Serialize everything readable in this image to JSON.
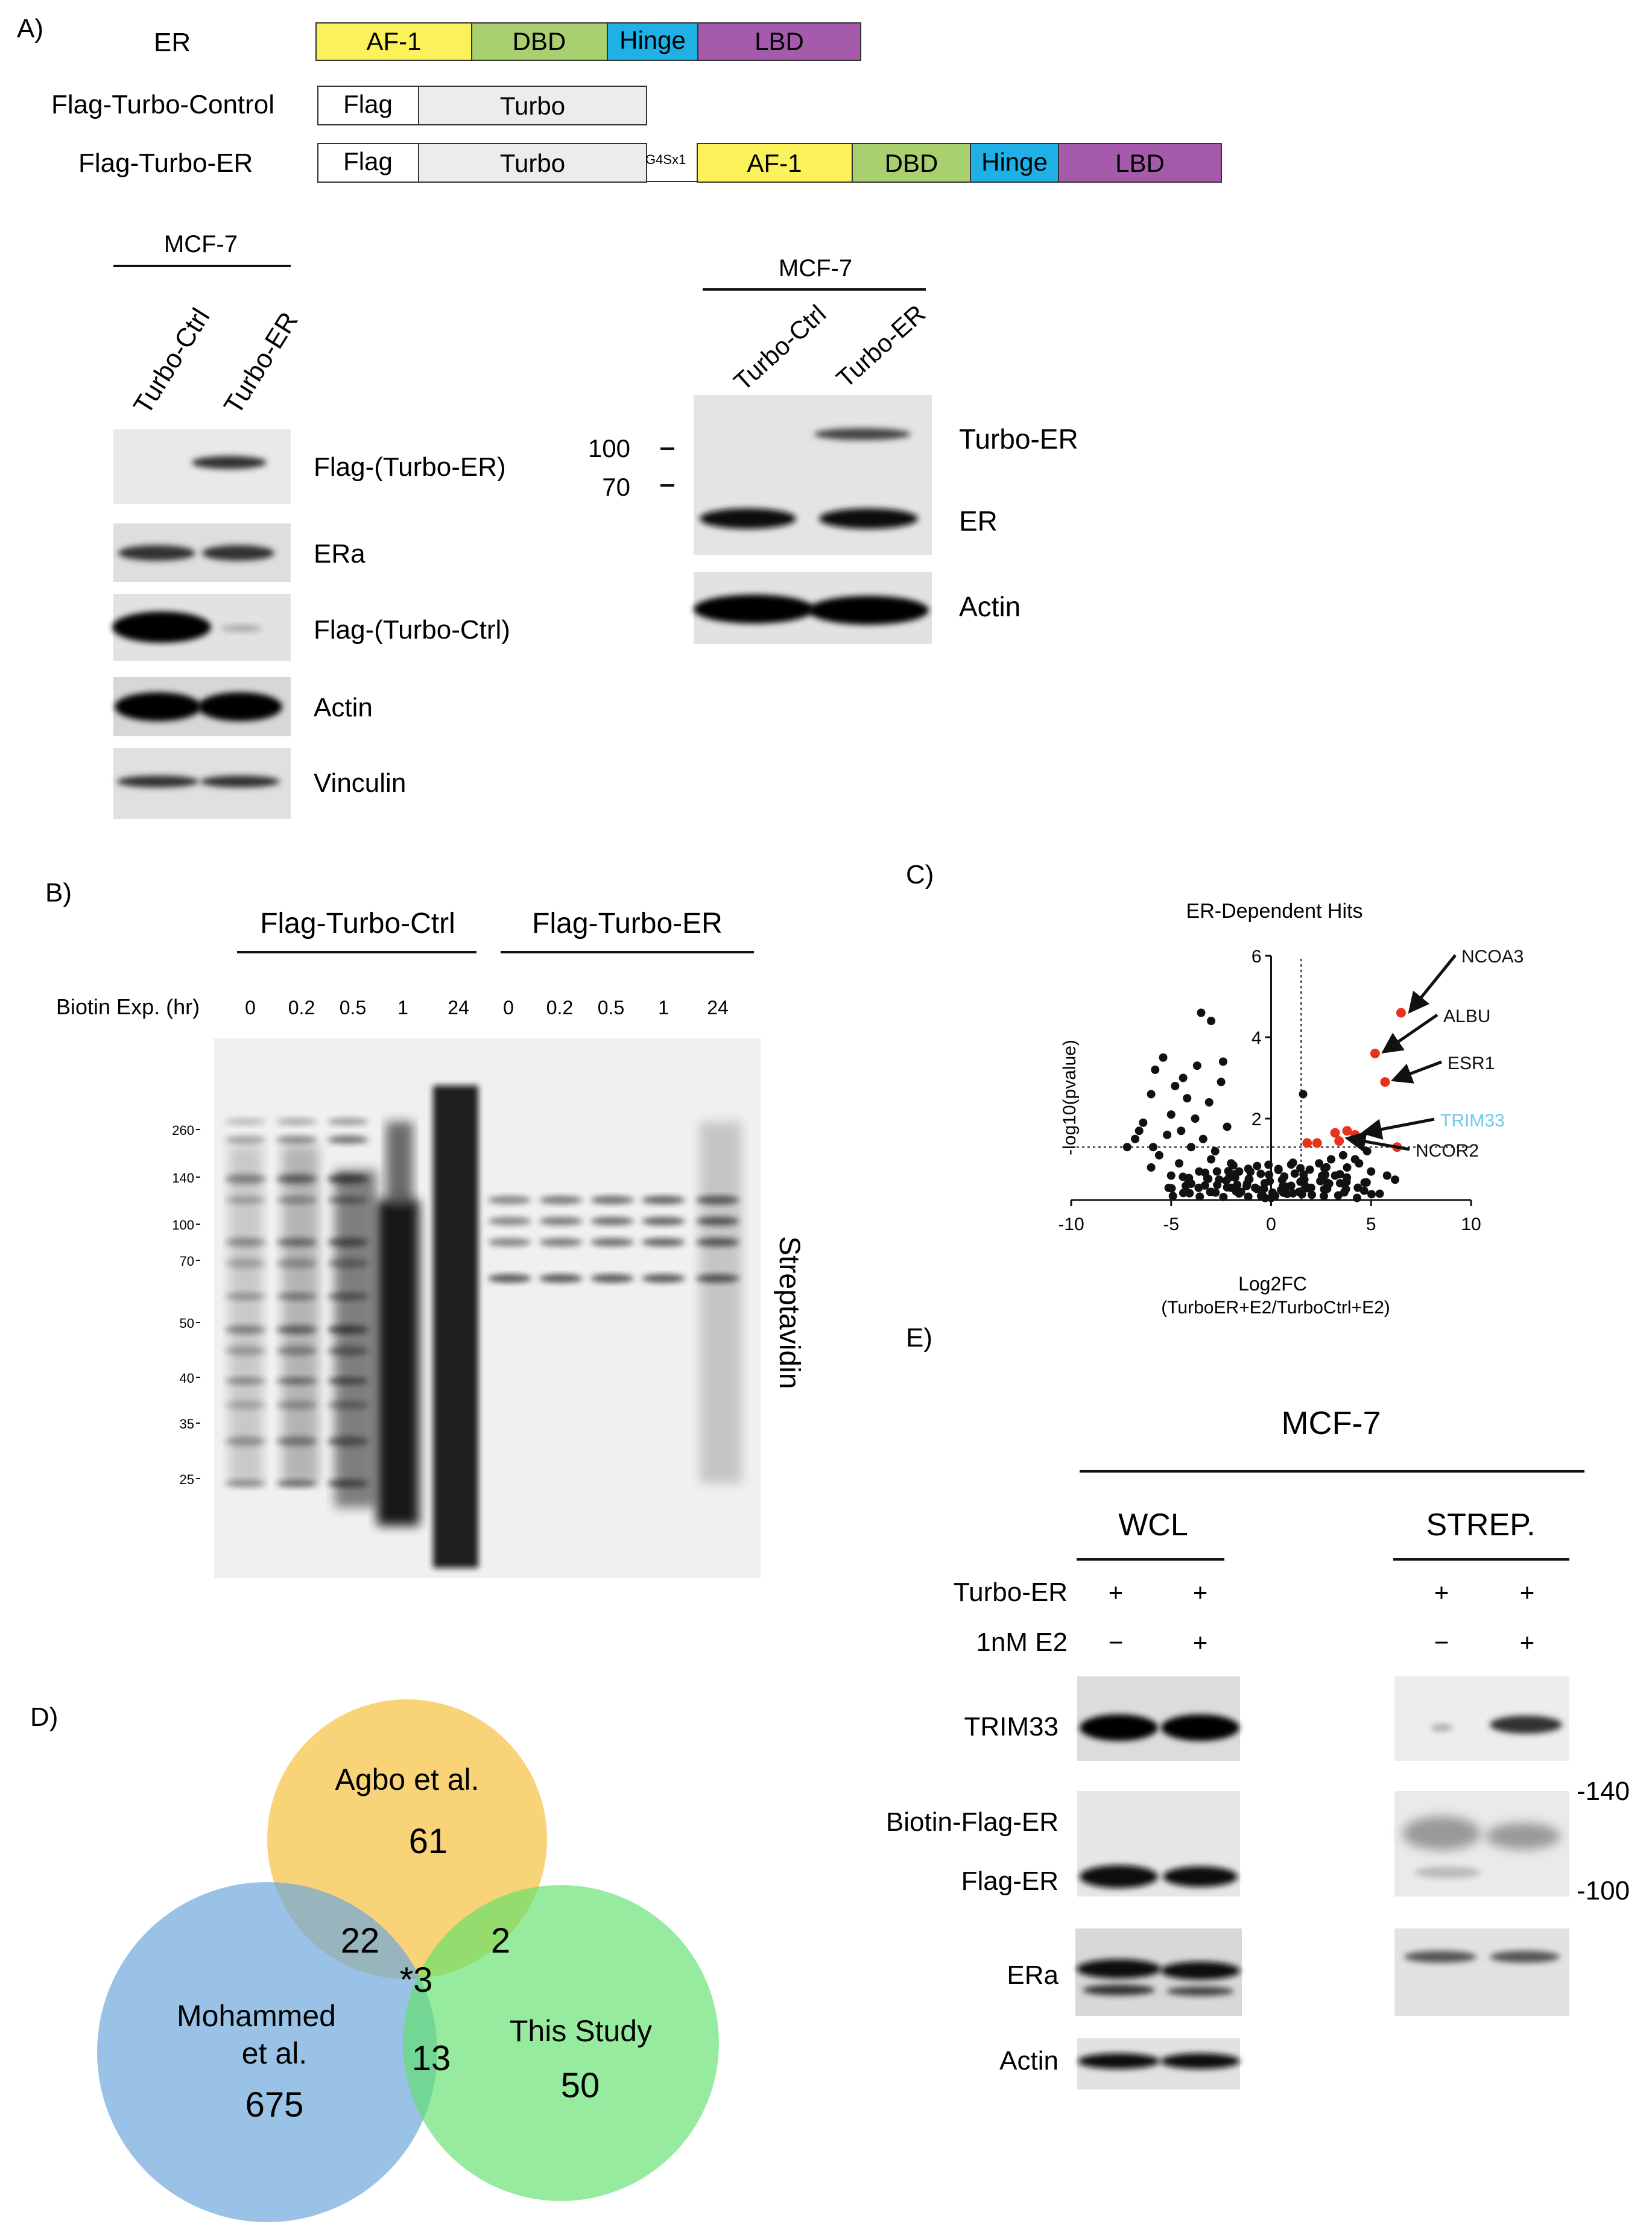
{
  "panelA": {
    "letter": "A)",
    "constructs": [
      {
        "name": "ER",
        "segments": [
          {
            "label": "AF-1",
            "color": "#fbf15b"
          },
          {
            "label": "DBD",
            "color": "#a8d06f"
          },
          {
            "label": "Hinge",
            "color": "#1fb1e6"
          },
          {
            "label": "LBD",
            "color": "#a65aac"
          }
        ]
      },
      {
        "name": "Flag-Turbo-Control",
        "segments": [
          {
            "label": "Flag",
            "color": "#ffffff"
          },
          {
            "label": "Turbo",
            "color": "#ececec"
          }
        ]
      },
      {
        "name": "Flag-Turbo-ER",
        "linker": "G4Sx1",
        "segments": [
          {
            "label": "Flag",
            "color": "#ffffff"
          },
          {
            "label": "Turbo",
            "color": "#ececec"
          },
          {
            "label": "AF-1",
            "color": "#fbf15b"
          },
          {
            "label": "DBD",
            "color": "#a8d06f"
          },
          {
            "label": "Hinge",
            "color": "#1fb1e6"
          },
          {
            "label": "LBD",
            "color": "#a65aac"
          }
        ]
      }
    ],
    "blot1": {
      "cell": "MCF-7",
      "lanes": [
        "Turbo-Ctrl",
        "Turbo-ER"
      ],
      "rows": [
        "Flag-(Turbo-ER)",
        "ERa",
        "Flag-(Turbo-Ctrl)",
        "Actin",
        "Vinculin"
      ]
    },
    "blot2": {
      "cell": "MCF-7",
      "lanes": [
        "Turbo-Ctrl",
        "Turbo-ER"
      ],
      "markers": [
        "100",
        "70"
      ],
      "rows": [
        "Turbo-ER",
        "ER",
        "Actin"
      ]
    }
  },
  "panelB": {
    "letter": "B)",
    "groups": [
      "Flag-Turbo-Ctrl",
      "Flag-Turbo-ER"
    ],
    "time_label": "Biotin Exp. (hr)",
    "times": [
      "0",
      "0.2",
      "0.5",
      "1",
      "24",
      "0",
      "0.2",
      "0.5",
      "1",
      "24"
    ],
    "markers": [
      "260",
      "140",
      "100",
      "70",
      "50",
      "40",
      "35",
      "25"
    ],
    "side_label": "Streptavidin"
  },
  "panelC": {
    "letter": "C)",
    "chart_data": {
      "type": "scatter",
      "title": "ER-Dependent Hits",
      "xlabel": "Log2FC",
      "xlabel2": "(TurboER+E2/TurboCtrl+E2)",
      "ylabel": "-log10(pvalue)",
      "xlim": [
        -10,
        10
      ],
      "ylim": [
        0,
        6
      ],
      "xticks": [
        "-10",
        "-5",
        "0",
        "5",
        "10"
      ],
      "yticks": [
        "2",
        "4",
        "6"
      ],
      "threshold_x": 1.5,
      "threshold_y": 1.3,
      "highlight_color": "#e8321e",
      "annotations": [
        {
          "label": "NCOA3",
          "x": 6.5,
          "y": 4.6,
          "color": "#111111"
        },
        {
          "label": "ALBU",
          "x": 5.2,
          "y": 3.6,
          "color": "#111111"
        },
        {
          "label": "ESR1",
          "x": 5.7,
          "y": 2.9,
          "color": "#111111"
        },
        {
          "label": "TRIM33",
          "x": 4.2,
          "y": 1.6,
          "color": "#6fc8ee"
        },
        {
          "label": "NCOR2",
          "x": 3.4,
          "y": 1.45,
          "color": "#111111"
        }
      ],
      "highlighted": [
        [
          6.5,
          4.6
        ],
        [
          5.2,
          3.6
        ],
        [
          5.7,
          2.9
        ],
        [
          4.2,
          1.6
        ],
        [
          3.4,
          1.45
        ],
        [
          3.8,
          1.7
        ],
        [
          3.2,
          1.65
        ],
        [
          2.3,
          1.4
        ],
        [
          1.8,
          1.4
        ],
        [
          6.3,
          1.3
        ]
      ],
      "background": [
        [
          -3.5,
          4.6
        ],
        [
          -3.0,
          4.4
        ],
        [
          -5.4,
          3.5
        ],
        [
          -5.8,
          3.2
        ],
        [
          -4.8,
          2.8
        ],
        [
          -2.5,
          2.9
        ],
        [
          -6.0,
          2.6
        ],
        [
          -4.2,
          2.5
        ],
        [
          -3.1,
          2.4
        ],
        [
          -5.0,
          2.1
        ],
        [
          -3.8,
          2.0
        ],
        [
          -6.4,
          1.9
        ],
        [
          -2.2,
          1.8
        ],
        [
          -4.5,
          1.7
        ],
        [
          -5.2,
          1.6
        ],
        [
          -3.4,
          1.5
        ],
        [
          -6.8,
          1.5
        ],
        [
          -7.2,
          1.3
        ],
        [
          -4.0,
          1.3
        ],
        [
          -2.8,
          1.2
        ],
        [
          -5.6,
          1.1
        ],
        [
          -3.0,
          1.0
        ],
        [
          -4.6,
          0.9
        ],
        [
          -2.0,
          0.9
        ],
        [
          -6.0,
          0.8
        ],
        [
          -3.6,
          0.7
        ],
        [
          -1.6,
          0.7
        ],
        [
          -5.0,
          0.6
        ],
        [
          -2.6,
          0.5
        ],
        [
          -1.2,
          0.4
        ],
        [
          -4.0,
          0.4
        ],
        [
          -0.8,
          0.3
        ],
        [
          -2.0,
          0.3
        ],
        [
          -3.0,
          0.2
        ],
        [
          -1.5,
          0.2
        ],
        [
          -0.5,
          0.1
        ],
        [
          0.2,
          0.1
        ],
        [
          0.8,
          0.15
        ],
        [
          1.4,
          0.2
        ],
        [
          0.5,
          0.25
        ],
        [
          -0.3,
          0.05
        ],
        [
          1.0,
          0.35
        ],
        [
          2.0,
          0.3
        ],
        [
          2.6,
          0.5
        ],
        [
          3.2,
          0.6
        ],
        [
          3.8,
          0.8
        ],
        [
          4.4,
          0.9
        ],
        [
          5.0,
          0.7
        ],
        [
          5.8,
          0.6
        ],
        [
          2.4,
          0.9
        ],
        [
          3.0,
          1.0
        ],
        [
          3.6,
          1.1
        ],
        [
          4.2,
          1.0
        ],
        [
          4.8,
          1.2
        ],
        [
          2.9,
          0.4
        ],
        [
          6.2,
          0.5
        ],
        [
          1.6,
          0.5
        ],
        [
          -2.4,
          3.4
        ],
        [
          -4.4,
          3.0
        ],
        [
          1.6,
          2.6
        ],
        [
          -1.8,
          0.55
        ],
        [
          -6.6,
          1.7
        ],
        [
          -5.9,
          1.3
        ],
        [
          -3.7,
          3.3
        ]
      ]
    }
  },
  "panelD": {
    "letter": "D)",
    "circles": [
      {
        "label": "Agbo et al.",
        "count": "61",
        "color": "#f6c44a"
      },
      {
        "label": "Mohammed et al.",
        "count": "675",
        "color": "#6fa8dc"
      },
      {
        "label": "This Study",
        "count": "50",
        "color": "#5ee06a"
      }
    ],
    "overlaps": {
      "agbo_mohammed": "22",
      "agbo_this": "2",
      "mohammed_this": "13",
      "all_three": "*3"
    }
  },
  "panelE": {
    "letter": "E)",
    "cell": "MCF-7",
    "groups": [
      "WCL",
      "STREP."
    ],
    "conditions": [
      {
        "label": "Turbo-ER",
        "values": [
          "+",
          "+",
          "+",
          "+"
        ]
      },
      {
        "label": "1nM E2",
        "values": [
          "−",
          "+",
          "−",
          "+"
        ]
      }
    ],
    "rows": [
      "TRIM33",
      "Biotin-Flag-ER",
      "Flag-ER",
      "ERa",
      "Actin"
    ],
    "markers": [
      "-140",
      "-100"
    ]
  }
}
